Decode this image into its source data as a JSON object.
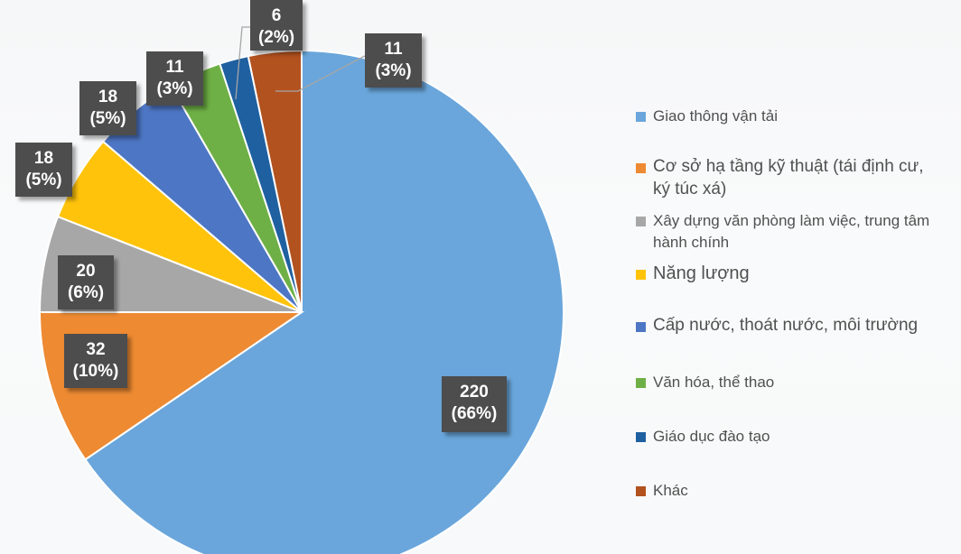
{
  "chart_data": {
    "type": "pie",
    "title": "",
    "unit": "",
    "slices": [
      {
        "name": "Giao thông vận tải",
        "value": 220,
        "percent_label": "(66%)",
        "color": "#6aa6db"
      },
      {
        "name": "Cơ sở hạ tầng kỹ thuật (tái định cư, ký túc xá)",
        "value": 32,
        "percent_label": "(10%)",
        "color": "#ed8a32"
      },
      {
        "name": "Xây dựng văn phòng làm việc, trung tâm hành chính",
        "value": 20,
        "percent_label": "(6%)",
        "color": "#a7a7a7"
      },
      {
        "name": "Năng lượng",
        "value": 18,
        "percent_label": "(5%)",
        "color": "#ffc30c"
      },
      {
        "name": "Cấp nước, thoát nước, môi trường",
        "value": 18,
        "percent_label": "(5%)",
        "color": "#4d76c4"
      },
      {
        "name": "Văn hóa, thể thao",
        "value": 11,
        "percent_label": "(3%)",
        "color": "#6eb045"
      },
      {
        "name": "Giáo dục đào tạo",
        "value": 6,
        "percent_label": "(2%)",
        "color": "#1f60a0"
      },
      {
        "name": "Khác",
        "value": 11,
        "percent_label": "(3%)",
        "color": "#b2521f"
      }
    ],
    "start_angle_deg": 0,
    "direction": "clockwise",
    "legend_position": "right"
  },
  "legend": {
    "items": [
      {
        "label": "Giao thông vận tải"
      },
      {
        "label": "Cơ sở hạ tầng kỹ thuật (tái định cư, ký túc xá)"
      },
      {
        "label": "Xây dựng văn phòng làm việc, trung tâm hành chính"
      },
      {
        "label": "Năng lượng"
      },
      {
        "label": "Cấp nước, thoát nước, môi trường"
      },
      {
        "label": "Văn hóa, thể thao"
      },
      {
        "label": "Giáo dục đào tạo"
      },
      {
        "label": "Khác"
      }
    ]
  },
  "labels": [
    {
      "value": "220",
      "percent": "(66%)"
    },
    {
      "value": "32",
      "percent": "(10%)"
    },
    {
      "value": "20",
      "percent": "(6%)"
    },
    {
      "value": "18",
      "percent": "(5%)"
    },
    {
      "value": "18",
      "percent": "(5%)"
    },
    {
      "value": "11",
      "percent": "(3%)"
    },
    {
      "value": "6",
      "percent": "(2%)"
    },
    {
      "value": "11",
      "percent": "(3%)"
    }
  ]
}
